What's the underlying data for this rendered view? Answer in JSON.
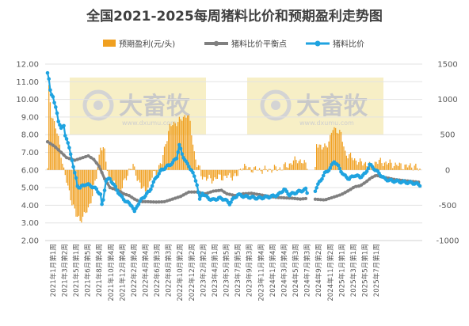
{
  "chart_data": {
    "type": "bar+line",
    "title": "全国2021-2025每周猪料比价和预期盈利走势图",
    "watermark": {
      "brand": "大畜牧",
      "site": "www.dxumu.com"
    },
    "colors": {
      "profit": "#f0a020",
      "breakeven": "#808080",
      "ratio": "#1fa3e0",
      "watermark_bg": "#f7efc6"
    },
    "legend": {
      "profit": "预期盈利(元/头)",
      "breakeven": "猪料比价平衡点",
      "ratio": "猪料比价",
      "position": "top"
    },
    "left_axis": {
      "min": 2.0,
      "max": 12.0,
      "ticks": [
        "2.00",
        "3.00",
        "4.00",
        "5.00",
        "6.00",
        "7.00",
        "8.00",
        "9.00",
        "10.00",
        "11.00",
        "12.00"
      ]
    },
    "right_axis": {
      "min": -1000,
      "max": 1500,
      "ticks": [
        "-1000",
        "-500",
        "0",
        "500",
        "1000",
        "1500"
      ]
    },
    "x_ticks": [
      "2021年1月第1周",
      "2021年3月第2周",
      "2021年5月第1周",
      "2021年6月第5周",
      "2021年8月第4周",
      "2021年10月第4周",
      "2021年12月第4周",
      "2022年2月第4周",
      "2022年4月第4周",
      "2022年6月第3周",
      "2022年8月第3周",
      "2022年10月第2周",
      "2022年12月第2周",
      "2023年2月第2周",
      "2023年4月第1周",
      "2023年5月第5周",
      "2023年7月第5周",
      "2023年9月第3周",
      "2023年11月第4周",
      "2024年1月第4周",
      "2024年3月第4周",
      "2024年5月第3周",
      "2024年7月第3周",
      "2024年9月第2周",
      "2024年11月第2周",
      "2025年1月第1周",
      "2025年3月第1周",
      "2025年5月第1周",
      "2025年7月第1周"
    ],
    "weeks_per_tick": 8.5,
    "profit_keypoints": [
      [
        0,
        0
      ],
      [
        1,
        1150
      ],
      [
        3,
        800
      ],
      [
        6,
        600
      ],
      [
        9,
        350
      ],
      [
        12,
        0
      ],
      [
        15,
        -250
      ],
      [
        18,
        -450
      ],
      [
        21,
        -650
      ],
      [
        24,
        -700
      ],
      [
        27,
        -650
      ],
      [
        30,
        -550
      ],
      [
        33,
        -350
      ],
      [
        36,
        -100
      ],
      [
        39,
        350
      ],
      [
        42,
        250
      ],
      [
        45,
        -100
      ],
      [
        48,
        -200
      ],
      [
        51,
        -250
      ],
      [
        54,
        -300
      ],
      [
        57,
        -150
      ],
      [
        60,
        0
      ],
      [
        63,
        50
      ],
      [
        66,
        -100
      ],
      [
        69,
        -250
      ],
      [
        72,
        -300
      ],
      [
        75,
        -200
      ],
      [
        78,
        -50
      ],
      [
        81,
        0
      ],
      [
        84,
        100
      ],
      [
        87,
        400
      ],
      [
        90,
        600
      ],
      [
        92,
        650
      ],
      [
        95,
        680
      ],
      [
        98,
        700
      ],
      [
        100,
        750
      ],
      [
        103,
        800
      ],
      [
        105,
        650
      ],
      [
        108,
        250
      ],
      [
        110,
        80
      ],
      [
        112,
        0
      ],
      [
        113,
        -80
      ],
      [
        117,
        -120
      ],
      [
        121,
        -140
      ],
      [
        125,
        -110
      ],
      [
        130,
        -100
      ],
      [
        135,
        -90
      ],
      [
        140,
        -80
      ],
      [
        143,
        60
      ],
      [
        148,
        20
      ],
      [
        153,
        5
      ],
      [
        160,
        0
      ],
      [
        165,
        10
      ],
      [
        172,
        25
      ],
      [
        177,
        70
      ],
      [
        181,
        120
      ],
      [
        184,
        150
      ],
      [
        186,
        130
      ],
      [
        188,
        100
      ],
      [
        197,
        0
      ],
      [
        198,
        400
      ],
      [
        200,
        350
      ],
      [
        202,
        300
      ],
      [
        205,
        350
      ],
      [
        208,
        450
      ],
      [
        210,
        580
      ],
      [
        213,
        580
      ],
      [
        216,
        500
      ],
      [
        219,
        250
      ],
      [
        222,
        200
      ],
      [
        226,
        150
      ],
      [
        230,
        100
      ],
      [
        234,
        100
      ],
      [
        238,
        50
      ],
      [
        242,
        120
      ],
      [
        246,
        110
      ],
      [
        250,
        100
      ],
      [
        255,
        80
      ],
      [
        260,
        60
      ],
      [
        265,
        50
      ],
      [
        270,
        60
      ],
      [
        274,
        -10
      ]
    ],
    "breakeven_keypoints": [
      [
        0,
        7.6
      ],
      [
        5,
        7.35
      ],
      [
        10,
        7.0
      ],
      [
        14,
        6.7
      ],
      [
        20,
        6.55
      ],
      [
        26,
        6.7
      ],
      [
        30,
        6.8
      ],
      [
        34,
        6.6
      ],
      [
        38,
        6.2
      ],
      [
        42,
        5.5
      ],
      [
        46,
        5.0
      ],
      [
        52,
        4.85
      ],
      [
        56,
        4.65
      ],
      [
        60,
        4.55
      ],
      [
        64,
        4.35
      ],
      [
        68,
        4.2
      ],
      [
        74,
        4.2
      ],
      [
        80,
        4.18
      ],
      [
        86,
        4.2
      ],
      [
        92,
        4.35
      ],
      [
        98,
        4.5
      ],
      [
        104,
        4.75
      ],
      [
        110,
        4.75
      ],
      [
        116,
        4.65
      ],
      [
        122,
        4.8
      ],
      [
        128,
        4.85
      ],
      [
        132,
        4.65
      ],
      [
        138,
        4.55
      ],
      [
        144,
        4.65
      ],
      [
        150,
        4.68
      ],
      [
        156,
        4.6
      ],
      [
        162,
        4.52
      ],
      [
        168,
        4.45
      ],
      [
        174,
        4.42
      ],
      [
        180,
        4.4
      ],
      [
        186,
        4.35
      ],
      [
        190,
        4.38
      ],
      [
        196,
        4.35
      ],
      [
        204,
        4.3
      ],
      [
        210,
        4.45
      ],
      [
        216,
        4.6
      ],
      [
        222,
        4.85
      ],
      [
        226,
        5.05
      ],
      [
        230,
        5.1
      ],
      [
        234,
        5.3
      ],
      [
        238,
        5.55
      ],
      [
        242,
        5.7
      ],
      [
        246,
        5.6
      ],
      [
        250,
        5.55
      ],
      [
        256,
        5.45
      ],
      [
        262,
        5.4
      ],
      [
        268,
        5.35
      ],
      [
        274,
        5.3
      ]
    ],
    "ratio_keypoints": [
      [
        0,
        11.5
      ],
      [
        1,
        11.1
      ],
      [
        2,
        10.5
      ],
      [
        3,
        10.3
      ],
      [
        4,
        10.2
      ],
      [
        5,
        9.8
      ],
      [
        6,
        9.5
      ],
      [
        7,
        9.2
      ],
      [
        8,
        8.8
      ],
      [
        9,
        8.6
      ],
      [
        10,
        8.35
      ],
      [
        11,
        8.4
      ],
      [
        12,
        8.5
      ],
      [
        13,
        8.0
      ],
      [
        14,
        7.8
      ],
      [
        15,
        7.5
      ],
      [
        16,
        7.2
      ],
      [
        17,
        6.9
      ],
      [
        18,
        6.6
      ],
      [
        19,
        6.2
      ],
      [
        20,
        5.8
      ],
      [
        21,
        5.5
      ],
      [
        22,
        5.1
      ],
      [
        24,
        5.0
      ],
      [
        28,
        5.2
      ],
      [
        32,
        5.1
      ],
      [
        36,
        4.9
      ],
      [
        39,
        4.6
      ],
      [
        40,
        4.0
      ],
      [
        41,
        4.3
      ],
      [
        42,
        4.9
      ],
      [
        43,
        5.4
      ],
      [
        46,
        5.5
      ],
      [
        50,
        5.0
      ],
      [
        54,
        4.5
      ],
      [
        58,
        4.2
      ],
      [
        62,
        4.0
      ],
      [
        64,
        3.6
      ],
      [
        66,
        4.0
      ],
      [
        70,
        4.4
      ],
      [
        75,
        4.8
      ],
      [
        80,
        5.6
      ],
      [
        84,
        6.0
      ],
      [
        88,
        6.2
      ],
      [
        92,
        6.4
      ],
      [
        95,
        6.7
      ],
      [
        97,
        7.4
      ],
      [
        99,
        6.9
      ],
      [
        101,
        6.6
      ],
      [
        103,
        6.3
      ],
      [
        106,
        6.0
      ],
      [
        108,
        5.6
      ],
      [
        110,
        5.2
      ],
      [
        112,
        4.3
      ],
      [
        114,
        4.7
      ],
      [
        118,
        4.4
      ],
      [
        122,
        4.3
      ],
      [
        126,
        4.4
      ],
      [
        130,
        4.35
      ],
      [
        134,
        4.1
      ],
      [
        136,
        4.3
      ],
      [
        140,
        4.6
      ],
      [
        145,
        4.5
      ],
      [
        150,
        4.45
      ],
      [
        155,
        4.4
      ],
      [
        160,
        4.45
      ],
      [
        165,
        4.5
      ],
      [
        170,
        4.6
      ],
      [
        174,
        4.9
      ],
      [
        178,
        4.6
      ],
      [
        182,
        4.7
      ],
      [
        186,
        4.8
      ],
      [
        190,
        4.9
      ],
      [
        191,
        4.7
      ],
      [
        196,
        4.7
      ],
      [
        200,
        5.3
      ],
      [
        204,
        5.8
      ],
      [
        208,
        6.1
      ],
      [
        211,
        6.5
      ],
      [
        214,
        6.2
      ],
      [
        218,
        5.7
      ],
      [
        222,
        5.5
      ],
      [
        226,
        5.7
      ],
      [
        230,
        5.6
      ],
      [
        234,
        5.8
      ],
      [
        237,
        6.3
      ],
      [
        240,
        6.1
      ],
      [
        244,
        5.8
      ],
      [
        248,
        5.5
      ],
      [
        252,
        5.4
      ],
      [
        258,
        5.35
      ],
      [
        264,
        5.3
      ],
      [
        270,
        5.25
      ],
      [
        274,
        5.15
      ]
    ],
    "segments": [
      [
        0,
        191
      ],
      [
        197,
        274
      ]
    ],
    "total_weeks": 275
  }
}
